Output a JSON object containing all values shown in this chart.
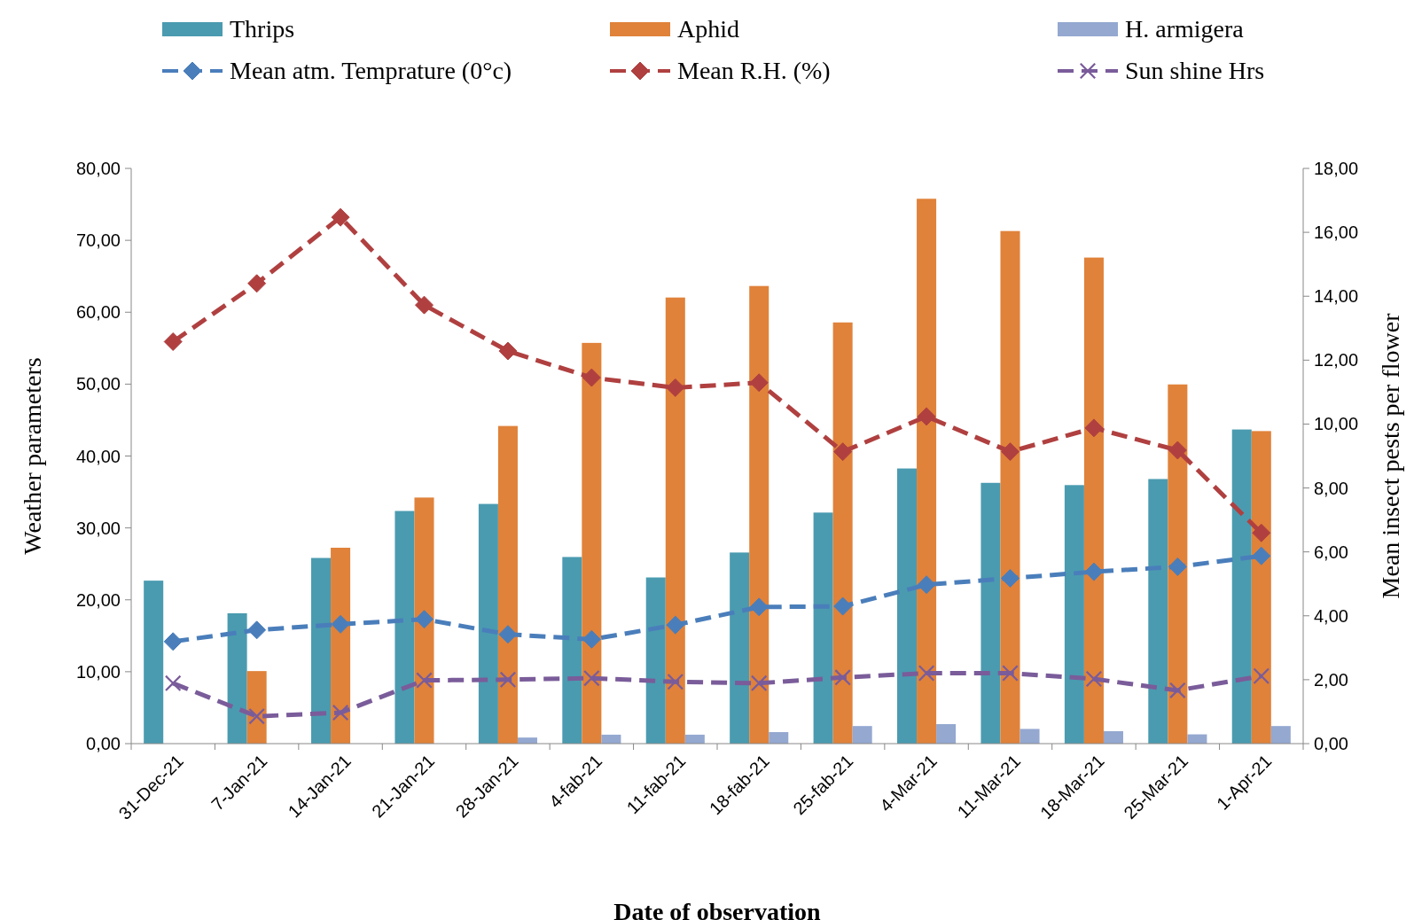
{
  "chart_data": {
    "type": "bar",
    "xlabel": "Date of observation",
    "ylabel": "Weather parameters",
    "y2label": "Mean insect pests per flower",
    "categories": [
      "31-Dec-21",
      "7-Jan-21",
      "14-Jan-21",
      "21-Jan-21",
      "28-Jan-21",
      "4-fab-21",
      "11-fab-21",
      "18-fab-21",
      "25-fab-21",
      "4-Mar-21",
      "11-Mar-21",
      "18-Mar-21",
      "25-Mar-21",
      "1-Apr-21"
    ],
    "series": [
      {
        "name": "Thrips",
        "axis": "y2",
        "color": "#4a9bb0",
        "values": [
          5.1,
          4.08,
          5.81,
          7.28,
          7.5,
          5.84,
          5.2,
          5.98,
          7.23,
          8.61,
          8.16,
          8.09,
          8.28,
          9.83
        ]
      },
      {
        "name": "Aphid",
        "axis": "y2",
        "color": "#e0823a",
        "values": [
          0,
          2.27,
          6.13,
          7.7,
          9.94,
          12.54,
          13.96,
          14.32,
          13.18,
          17.05,
          16.04,
          15.21,
          11.24,
          9.78
        ]
      },
      {
        "name": "H. armigera",
        "axis": "y2",
        "color": "#94a8d0",
        "values": [
          0,
          0,
          0,
          0,
          0.19,
          0.28,
          0.28,
          0.36,
          0.55,
          0.61,
          0.46,
          0.39,
          0.29,
          0.55
        ]
      },
      {
        "name": "Mean atm. Temprature (0°c)",
        "type": "line",
        "axis": "y",
        "color": "#4a7ebb",
        "marker": "diamond",
        "line_style": "dashed",
        "values": [
          14.2,
          15.8,
          16.6,
          17.3,
          15.2,
          14.5,
          16.5,
          19.0,
          19.1,
          22.1,
          23.0,
          23.9,
          24.6,
          26.1
        ]
      },
      {
        "name": "Mean R.H. (%)",
        "type": "line",
        "axis": "y",
        "color": "#b04040",
        "marker": "diamond",
        "line_style": "dashed",
        "values": [
          55.9,
          64.0,
          73.2,
          61.0,
          54.6,
          50.9,
          49.5,
          50.2,
          40.6,
          45.5,
          40.6,
          43.9,
          40.8,
          29.3
        ]
      },
      {
        "name": "Sun shine Hrs",
        "type": "line",
        "axis": "y",
        "color": "#7a5c9a",
        "marker": "cross",
        "line_style": "dashed",
        "values": [
          8.4,
          3.8,
          4.3,
          8.8,
          8.9,
          9.1,
          8.6,
          8.4,
          9.2,
          9.8,
          9.8,
          9.0,
          7.4,
          9.4
        ]
      }
    ],
    "ylim": [
      0,
      80
    ],
    "yticks": [
      {
        "value": 0,
        "label": "0,00"
      },
      {
        "value": 10,
        "label": "10,00"
      },
      {
        "value": 20,
        "label": "20,00"
      },
      {
        "value": 30,
        "label": "30,00"
      },
      {
        "value": 40,
        "label": "40,00"
      },
      {
        "value": 50,
        "label": "50,00"
      },
      {
        "value": 60,
        "label": "60,00"
      },
      {
        "value": 70,
        "label": "70,00"
      },
      {
        "value": 80,
        "label": "80,00"
      }
    ],
    "y2lim": [
      0,
      18
    ],
    "y2ticks": [
      {
        "value": 0,
        "label": "0,00"
      },
      {
        "value": 2,
        "label": "2,00"
      },
      {
        "value": 4,
        "label": "4,00"
      },
      {
        "value": 6,
        "label": "6,00"
      },
      {
        "value": 8,
        "label": "8,00"
      },
      {
        "value": 10,
        "label": "10,00"
      },
      {
        "value": 12,
        "label": "12,00"
      },
      {
        "value": 14,
        "label": "14,00"
      },
      {
        "value": 16,
        "label": "16,00"
      },
      {
        "value": 18,
        "label": "18,00"
      }
    ],
    "legend": "top",
    "grid": false
  }
}
